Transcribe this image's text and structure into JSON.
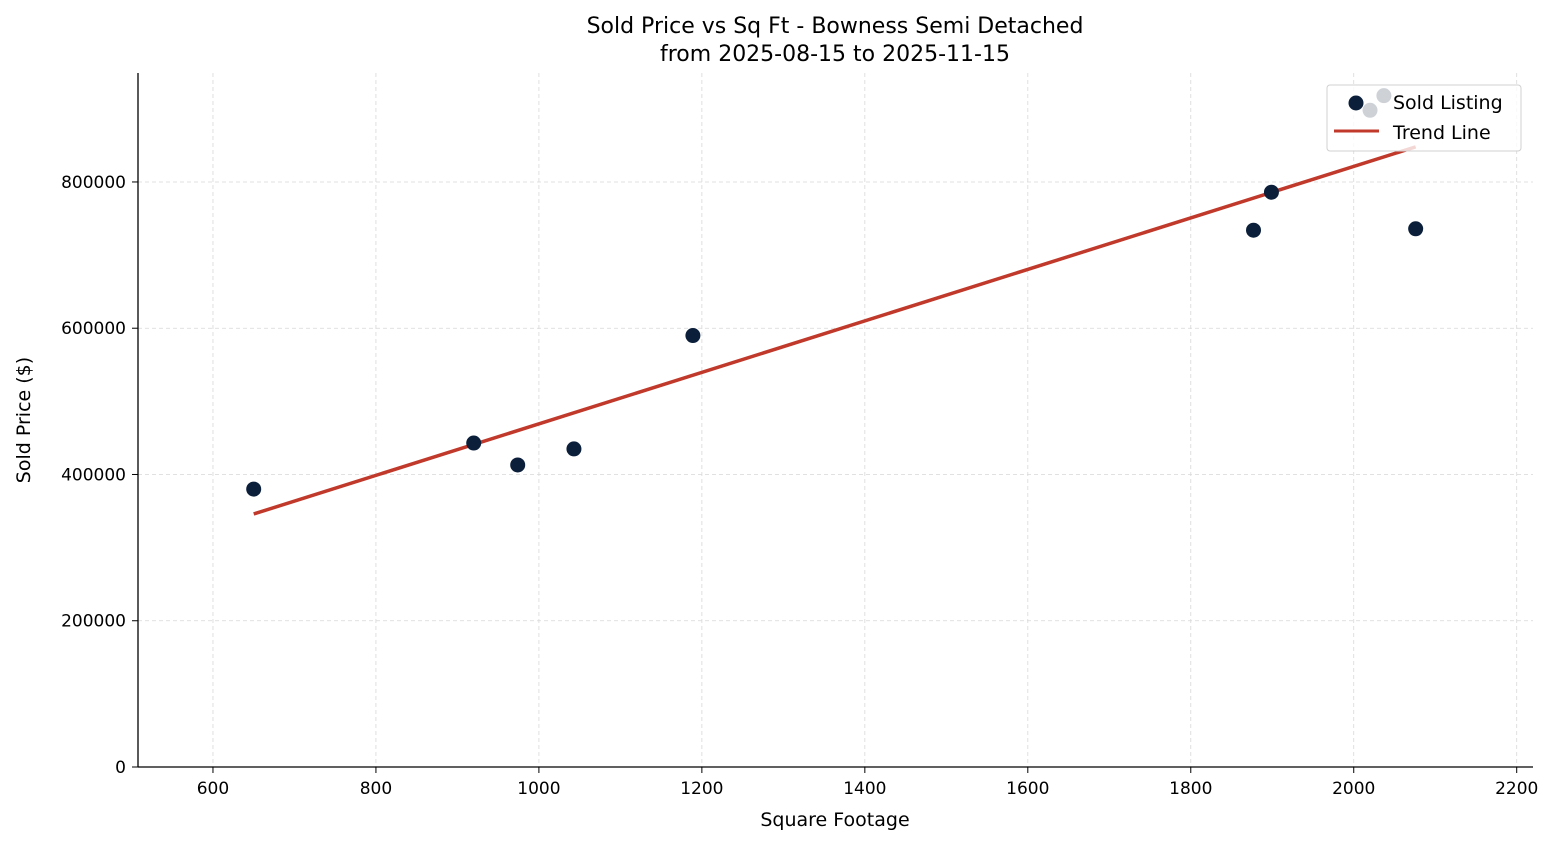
{
  "chart_data": {
    "type": "scatter",
    "title": "Sold Price vs Sq Ft - Bowness Semi Detached",
    "subtitle": "from 2025-08-15 to 2025-11-15",
    "xlabel": "Square Footage",
    "ylabel": "Sold Price ($)",
    "xlim": [
      508,
      2220
    ],
    "ylim": [
      0,
      949000
    ],
    "xticks": [
      600,
      800,
      1000,
      1200,
      1400,
      1600,
      1800,
      2000,
      2200
    ],
    "yticks": [
      0,
      200000,
      400000,
      600000,
      800000
    ],
    "grid": true,
    "legend_placement": "top-right",
    "series": [
      {
        "name": "Sold Listing",
        "type": "scatter",
        "color": "#0b1f3a",
        "x": [
          650,
          920,
          974,
          1043,
          1189,
          1877,
          1899,
          2076,
          2020,
          2037
        ],
        "y": [
          380000,
          443000,
          413000,
          435000,
          590000,
          734000,
          786000,
          736000,
          898000,
          918000
        ]
      },
      {
        "name": "Trend Line",
        "type": "line",
        "color": "#c0392b",
        "x": [
          650,
          2076
        ],
        "y": [
          346000,
          848000
        ]
      }
    ]
  }
}
